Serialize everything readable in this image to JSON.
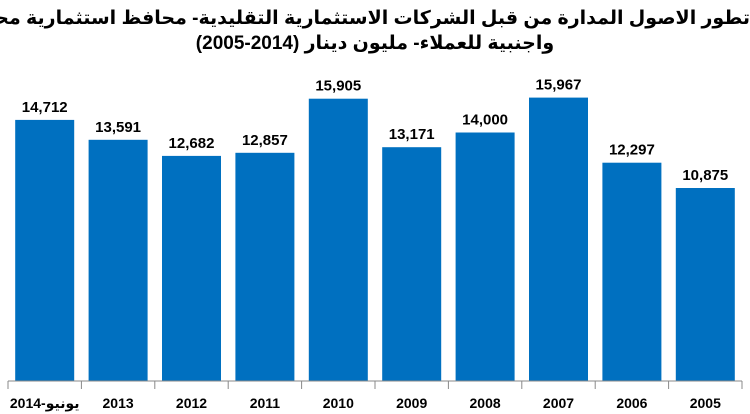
{
  "chart_data": {
    "type": "bar",
    "title": "تطور الاصول المدارة من قبل الشركات الاستثمارية التقليدية- محافظ استثمارية محلية",
    "subtitle": "واجنبية للعملاء- مليون دينار (2014-2005)",
    "categories": [
      "يونيو-2014",
      "2013",
      "2012",
      "2011",
      "2010",
      "2009",
      "2008",
      "2007",
      "2006",
      "2005"
    ],
    "values": [
      14712,
      13591,
      12682,
      12857,
      15905,
      13171,
      14000,
      15967,
      12297,
      10875
    ],
    "value_labels": [
      "14,712",
      "13,591",
      "12,682",
      "12,857",
      "15,905",
      "13,171",
      "14,000",
      "15,967",
      "12,297",
      "10,875"
    ],
    "bar_color": "#0070C0",
    "ylim": [
      0,
      20000
    ],
    "grid": false,
    "legend": "none"
  }
}
